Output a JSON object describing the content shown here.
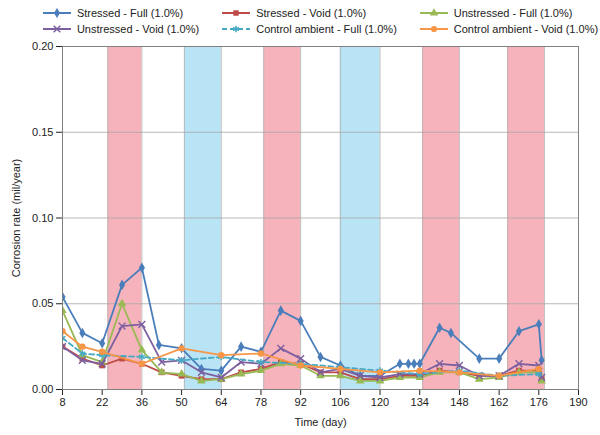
{
  "chart_data": {
    "type": "line",
    "x_label": "Time (day)",
    "y_label": "Corrosion rate (mil/year)",
    "xlim": [
      8,
      190
    ],
    "xticks": [
      8,
      22,
      36,
      50,
      64,
      78,
      92,
      106,
      120,
      134,
      148,
      162,
      176,
      190
    ],
    "ylim": [
      0,
      0.2
    ],
    "yticks": [
      {
        "value": 0,
        "label": "0.00"
      },
      {
        "value": 0.05,
        "label": "0.05"
      },
      {
        "value": 0.1,
        "label": "0.10"
      },
      {
        "value": 0.15,
        "label": "0.15"
      },
      {
        "value": 0.2,
        "label": "0.20"
      }
    ],
    "grid": true,
    "legend": "top",
    "shaded_regions": [
      {
        "x0": 24,
        "x1": 36,
        "color": "#f7b3bb"
      },
      {
        "x0": 51,
        "x1": 64,
        "color": "#b9e4f6"
      },
      {
        "x0": 79,
        "x1": 92,
        "color": "#f7b3bb"
      },
      {
        "x0": 106,
        "x1": 120,
        "color": "#b9e4f6"
      },
      {
        "x0": 135,
        "x1": 148,
        "color": "#f7b3bb"
      },
      {
        "x0": 165,
        "x1": 178,
        "color": "#f7b3bb"
      }
    ],
    "series": [
      {
        "name": "Stressed - Full (1.0%)",
        "color": "#4a7ebb",
        "marker": "diamond",
        "line_style": "solid",
        "x": [
          8,
          15,
          22,
          29,
          36,
          42,
          50,
          57,
          64,
          71,
          78,
          85,
          92,
          99,
          106,
          113,
          120,
          127,
          130,
          132,
          134,
          141,
          145,
          155,
          162,
          169,
          176,
          177
        ],
        "values": [
          0.054,
          0.033,
          0.027,
          0.061,
          0.071,
          0.026,
          0.024,
          0.012,
          0.011,
          0.025,
          0.022,
          0.046,
          0.04,
          0.019,
          0.014,
          0.008,
          0.008,
          0.015,
          0.015,
          0.015,
          0.015,
          0.036,
          0.033,
          0.018,
          0.018,
          0.034,
          0.038,
          0.017
        ]
      },
      {
        "name": "Stressed - Void (1.0%)",
        "color": "#be4b48",
        "marker": "square",
        "line_style": "solid",
        "x": [
          8,
          15,
          22,
          29,
          36,
          43,
          50,
          57,
          64,
          71,
          78,
          85,
          92,
          99,
          106,
          113,
          120,
          127,
          134,
          141,
          148,
          155,
          162,
          169,
          176,
          177
        ],
        "values": [
          0.025,
          0.018,
          0.014,
          0.018,
          0.015,
          0.01,
          0.008,
          0.006,
          0.006,
          0.01,
          0.012,
          0.016,
          0.015,
          0.01,
          0.01,
          0.006,
          0.006,
          0.008,
          0.008,
          0.011,
          0.01,
          0.008,
          0.008,
          0.011,
          0.011,
          0.006
        ]
      },
      {
        "name": "Unstressed - Full (1.0%)",
        "color": "#98b954",
        "marker": "triangle",
        "line_style": "solid",
        "x": [
          8,
          15,
          22,
          29,
          36,
          43,
          50,
          57,
          64,
          71,
          78,
          85,
          92,
          99,
          106,
          113,
          120,
          127,
          134,
          141,
          148,
          155,
          162,
          169,
          176,
          177
        ],
        "values": [
          0.046,
          0.02,
          0.016,
          0.05,
          0.023,
          0.01,
          0.009,
          0.005,
          0.006,
          0.009,
          0.011,
          0.015,
          0.014,
          0.008,
          0.008,
          0.005,
          0.005,
          0.007,
          0.007,
          0.01,
          0.01,
          0.006,
          0.007,
          0.01,
          0.01,
          0.005
        ]
      },
      {
        "name": "Unstressed - Void (1.0%)",
        "color": "#7d60a0",
        "marker": "times",
        "line_style": "solid",
        "x": [
          8,
          15,
          22,
          29,
          36,
          43,
          50,
          57,
          64,
          71,
          78,
          85,
          92,
          99,
          106,
          113,
          120,
          127,
          134,
          141,
          148,
          155,
          162,
          169,
          176,
          177
        ],
        "values": [
          0.025,
          0.017,
          0.015,
          0.037,
          0.038,
          0.016,
          0.017,
          0.01,
          0.007,
          0.016,
          0.015,
          0.024,
          0.018,
          0.01,
          0.012,
          0.008,
          0.007,
          0.009,
          0.009,
          0.015,
          0.014,
          0.008,
          0.008,
          0.015,
          0.014,
          0.007
        ]
      },
      {
        "name": "Control ambient - Full (1.0%)",
        "color": "#46aac5",
        "marker": "asterisk",
        "line_style": "dashed",
        "x": [
          8,
          15,
          22,
          36,
          50,
          64,
          78,
          92,
          106,
          120,
          134,
          148,
          162,
          176
        ],
        "values": [
          0.03,
          0.021,
          0.02,
          0.019,
          0.017,
          0.019,
          0.016,
          0.015,
          0.013,
          0.011,
          0.009,
          0.011,
          0.008,
          0.009
        ]
      },
      {
        "name": "Control ambient - Void (1.0%)",
        "color": "#f79646",
        "marker": "circle",
        "line_style": "solid",
        "x": [
          8,
          15,
          22,
          36,
          50,
          64,
          78,
          92,
          106,
          120,
          134,
          148,
          162,
          176
        ],
        "values": [
          0.034,
          0.025,
          0.022,
          0.015,
          0.024,
          0.02,
          0.021,
          0.014,
          0.012,
          0.01,
          0.011,
          0.01,
          0.008,
          0.012
        ]
      }
    ]
  }
}
